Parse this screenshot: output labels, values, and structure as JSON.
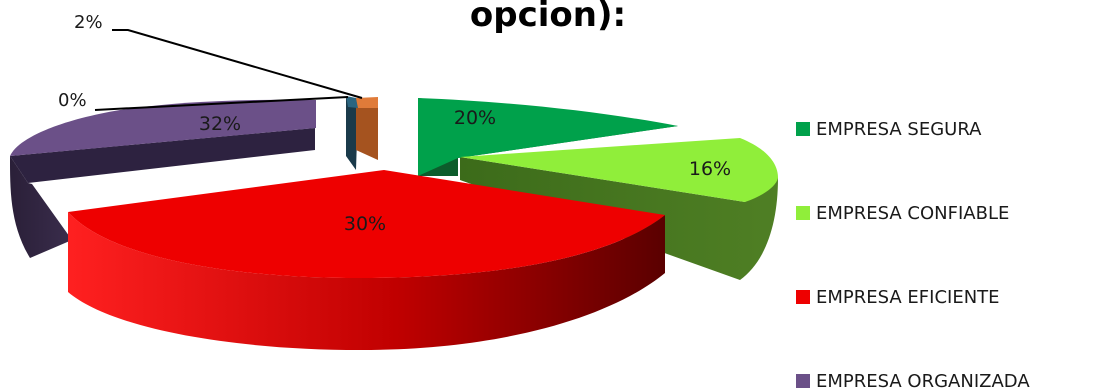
{
  "chart_data": {
    "type": "pie",
    "title": "opcion):",
    "categories": [
      "EMPRESA SEGURA",
      "EMPRESA CONFIABLE",
      "EMPRESA EFICIENTE",
      "EMPRESA ORGANIZADA",
      "",
      ""
    ],
    "values": [
      20,
      16,
      30,
      32,
      0,
      2
    ],
    "labels": [
      "20%",
      "16%",
      "30%",
      "32%",
      "0%",
      "2%"
    ],
    "colors": [
      "#00a14b",
      "#90ee3a",
      "#ee0000",
      "#6b5088",
      "#1f4e79",
      "#e07b39"
    ],
    "legend_position": "right",
    "style": "3d-exploded"
  }
}
